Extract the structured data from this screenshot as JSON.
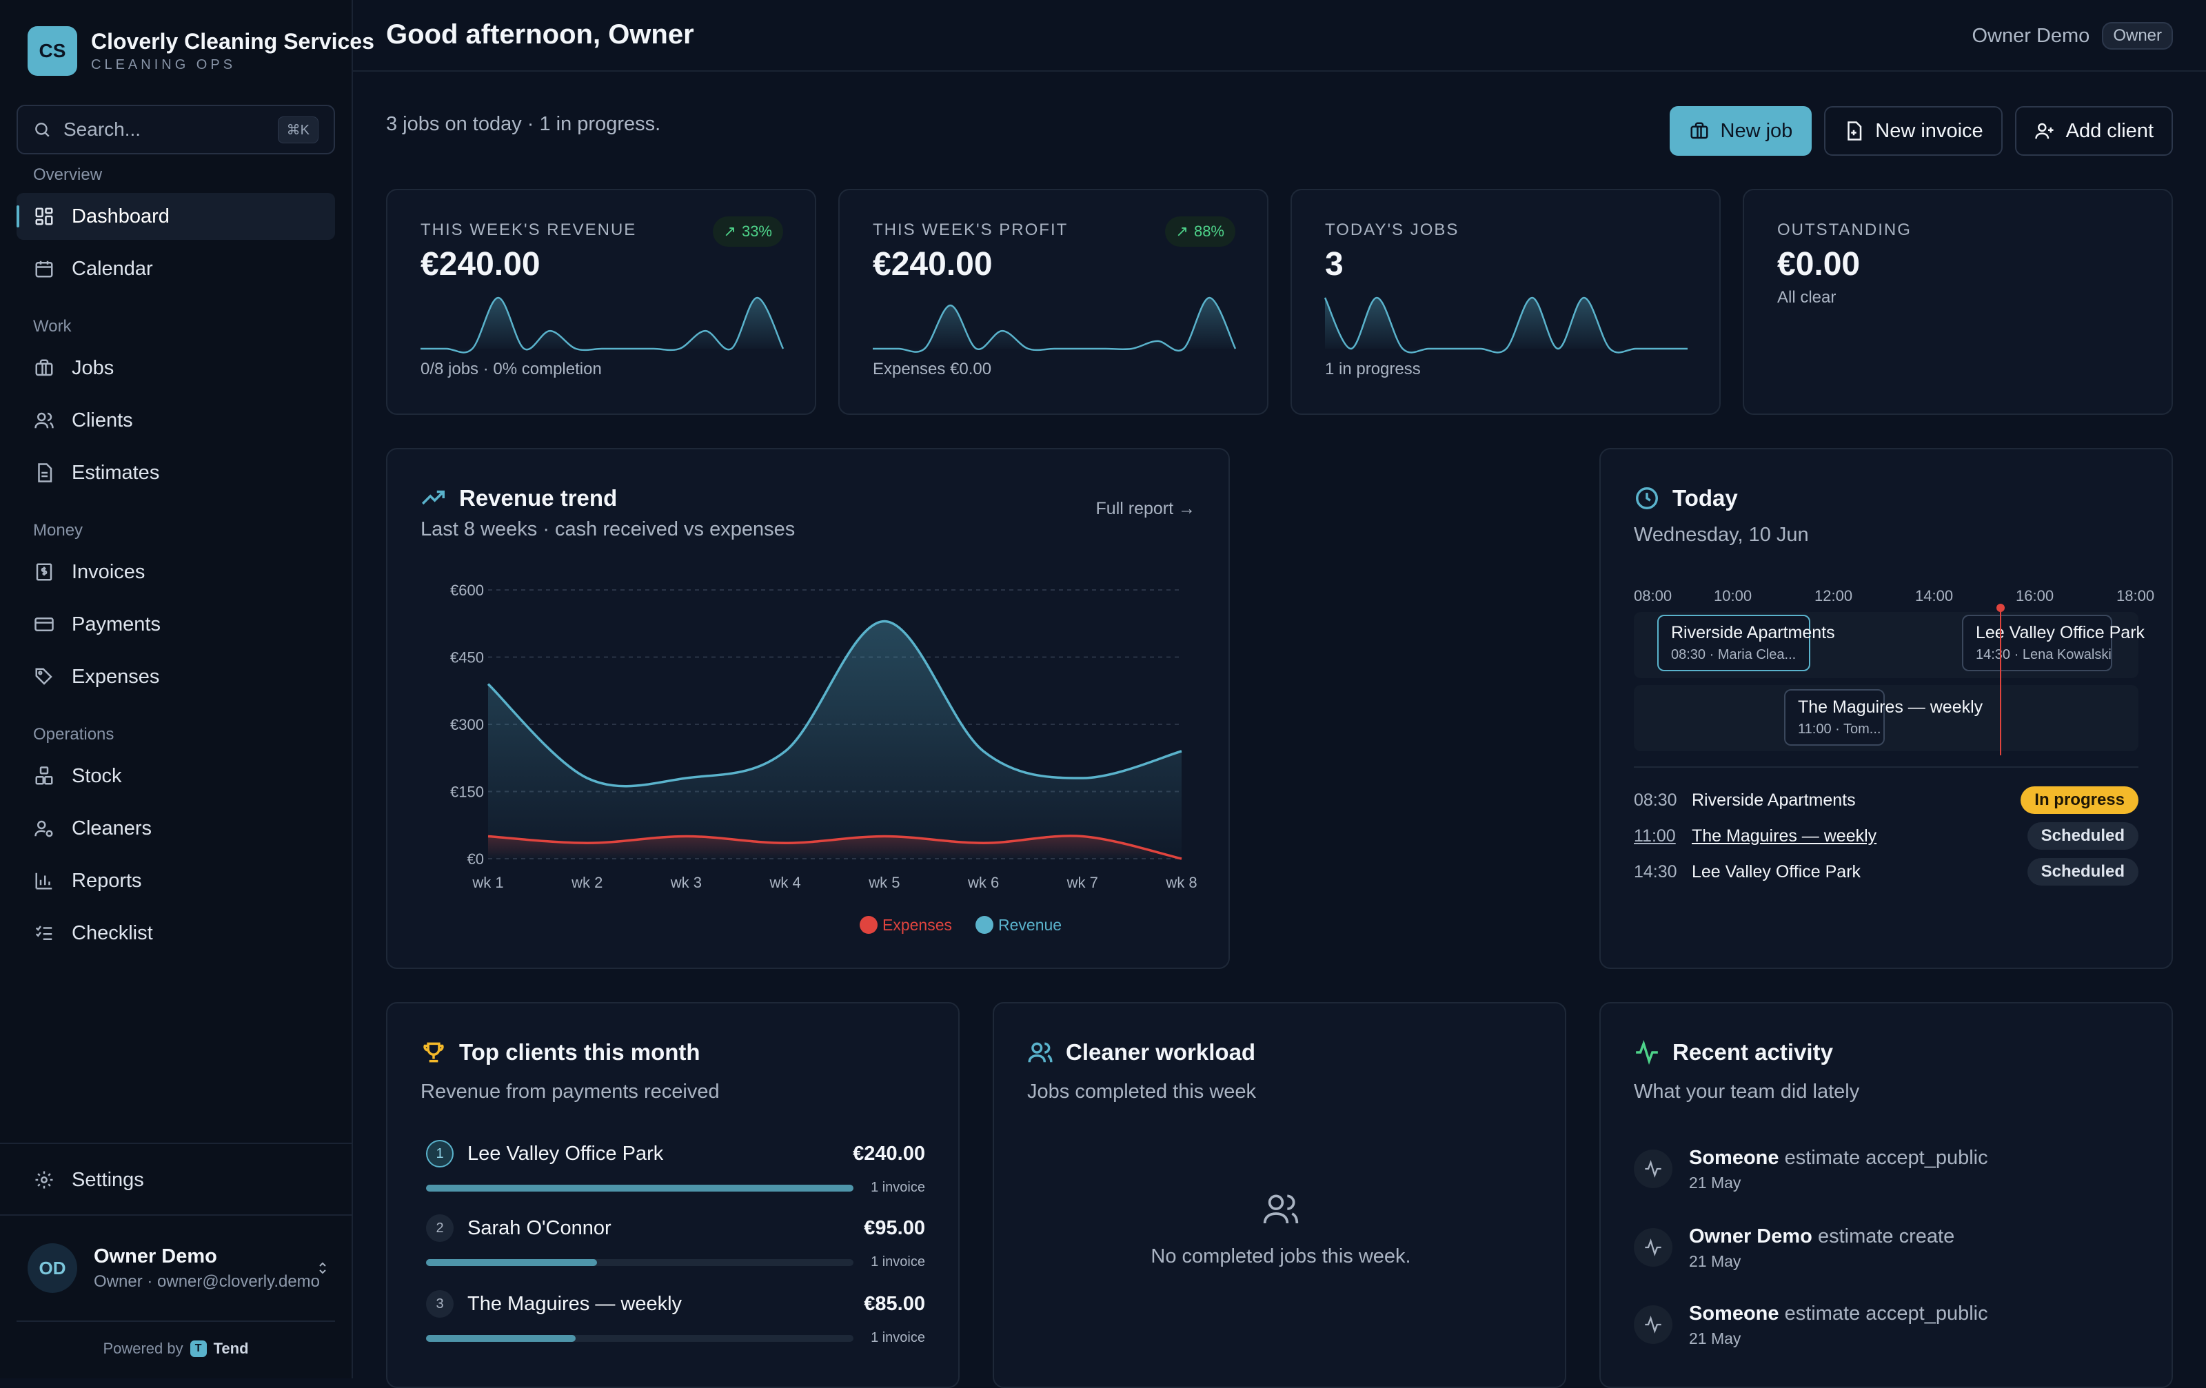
{
  "brand": {
    "initials": "CS",
    "name": "Cloverly Cleaning Services",
    "subtitle": "CLEANING OPS"
  },
  "search": {
    "placeholder": "Search...",
    "shortcut": "⌘K"
  },
  "nav": {
    "sections": [
      {
        "label": "Overview",
        "items": [
          {
            "label": "Dashboard",
            "icon": "dashboard-icon",
            "active": true
          },
          {
            "label": "Calendar",
            "icon": "calendar-icon"
          }
        ]
      },
      {
        "label": "Work",
        "items": [
          {
            "label": "Jobs",
            "icon": "briefcase-icon"
          },
          {
            "label": "Clients",
            "icon": "users-icon"
          },
          {
            "label": "Estimates",
            "icon": "document-icon"
          }
        ]
      },
      {
        "label": "Money",
        "items": [
          {
            "label": "Invoices",
            "icon": "invoice-icon"
          },
          {
            "label": "Payments",
            "icon": "credit-card-icon"
          },
          {
            "label": "Expenses",
            "icon": "tag-icon"
          }
        ]
      },
      {
        "label": "Operations",
        "items": [
          {
            "label": "Stock",
            "icon": "boxes-icon"
          },
          {
            "label": "Cleaners",
            "icon": "user-cog-icon"
          },
          {
            "label": "Reports",
            "icon": "bar-chart-icon"
          },
          {
            "label": "Checklist",
            "icon": "checklist-icon"
          }
        ]
      }
    ],
    "settings": "Settings"
  },
  "user": {
    "initials": "OD",
    "name": "Owner Demo",
    "role_email": "Owner · owner@cloverly.demo"
  },
  "powered": {
    "prefix": "Powered by",
    "logo": "T",
    "name": "Tend"
  },
  "header": {
    "greeting": "Good afternoon, Owner",
    "user_name": "Owner Demo",
    "role": "Owner"
  },
  "summary": "3 jobs on today · 1 in progress.",
  "actions": {
    "new_job": "New job",
    "new_invoice": "New invoice",
    "add_client": "Add client"
  },
  "kpis": [
    {
      "label": "THIS WEEK'S REVENUE",
      "value": "€240.00",
      "trend": "33%",
      "foot": "0/8 jobs · 0% completion",
      "spark": [
        0,
        0,
        0,
        1,
        0,
        0.35,
        0,
        0,
        0,
        0,
        0,
        0.35,
        0,
        1,
        0
      ]
    },
    {
      "label": "THIS WEEK'S PROFIT",
      "value": "€240.00",
      "trend": "88%",
      "foot": "Expenses €0.00",
      "spark": [
        0,
        0,
        0,
        0.85,
        0,
        0.35,
        0,
        0,
        0,
        0,
        0,
        0.15,
        0,
        1,
        0
      ]
    },
    {
      "label": "TODAY'S JOBS",
      "value": "3",
      "foot": "1 in progress",
      "spark": [
        1,
        0,
        1,
        0,
        0,
        0,
        0,
        0,
        1,
        0,
        1,
        0,
        0,
        0,
        0
      ]
    },
    {
      "label": "OUTSTANDING",
      "value": "€0.00",
      "foot": "All clear"
    }
  ],
  "revenue": {
    "title": "Revenue trend",
    "subtitle": "Last 8 weeks · cash received vs expenses",
    "link": "Full report →",
    "legend_expenses": "Expenses",
    "legend_revenue": "Revenue"
  },
  "chart_data": {
    "type": "area",
    "categories": [
      "wk 1",
      "wk 2",
      "wk 3",
      "wk 4",
      "wk 5",
      "wk 6",
      "wk 7",
      "wk 8"
    ],
    "series": [
      {
        "name": "Revenue",
        "values": [
          390,
          180,
          180,
          240,
          530,
          240,
          180,
          240
        ],
        "color": "#5ab3cc"
      },
      {
        "name": "Expenses",
        "values": [
          50,
          35,
          50,
          35,
          50,
          35,
          50,
          0
        ],
        "color": "#e0443e"
      }
    ],
    "y_ticks": [
      "€0",
      "€150",
      "€300",
      "€450",
      "€600"
    ],
    "ylim": [
      0,
      600
    ],
    "grid": true,
    "legend": "bottom-center"
  },
  "today": {
    "title": "Today",
    "date": "Wednesday, 10 Jun",
    "axis": [
      "08:00",
      "10:00",
      "12:00",
      "14:00",
      "16:00",
      "18:00"
    ],
    "events": [
      {
        "name": "Riverside Apartments",
        "meta": "08:30 · Maria Clea...",
        "current": true
      },
      {
        "name": "Lee Valley Office Park",
        "meta": "14:30 · Lena Kowalski"
      },
      {
        "name": "The Maguires — weekly",
        "meta": "11:00 · Tom..."
      }
    ],
    "schedule": [
      {
        "time": "08:30",
        "name": "Riverside Apartments",
        "status": "In progress"
      },
      {
        "time": "11:00",
        "name": "The Maguires — weekly",
        "status": "Scheduled"
      },
      {
        "time": "14:30",
        "name": "Lee Valley Office Park",
        "status": "Scheduled"
      }
    ]
  },
  "top_clients": {
    "title": "Top clients this month",
    "subtitle": "Revenue from payments received",
    "items": [
      {
        "rank": "1",
        "name": "Lee Valley Office Park",
        "amount": "€240.00",
        "invoices": "1 invoice",
        "share": 1.0
      },
      {
        "rank": "2",
        "name": "Sarah O'Connor",
        "amount": "€95.00",
        "invoices": "1 invoice",
        "share": 0.4
      },
      {
        "rank": "3",
        "name": "The Maguires — weekly",
        "amount": "€85.00",
        "invoices": "1 invoice",
        "share": 0.35
      }
    ]
  },
  "workload": {
    "title": "Cleaner workload",
    "subtitle": "Jobs completed this week",
    "empty": "No completed jobs this week."
  },
  "activity": {
    "title": "Recent activity",
    "subtitle": "What your team did lately",
    "items": [
      {
        "actor": "Someone",
        "action": "estimate accept_public",
        "date": "21 May"
      },
      {
        "actor": "Owner Demo",
        "action": "estimate create",
        "date": "21 May"
      },
      {
        "actor": "Someone",
        "action": "estimate accept_public",
        "date": "21 May"
      }
    ]
  }
}
